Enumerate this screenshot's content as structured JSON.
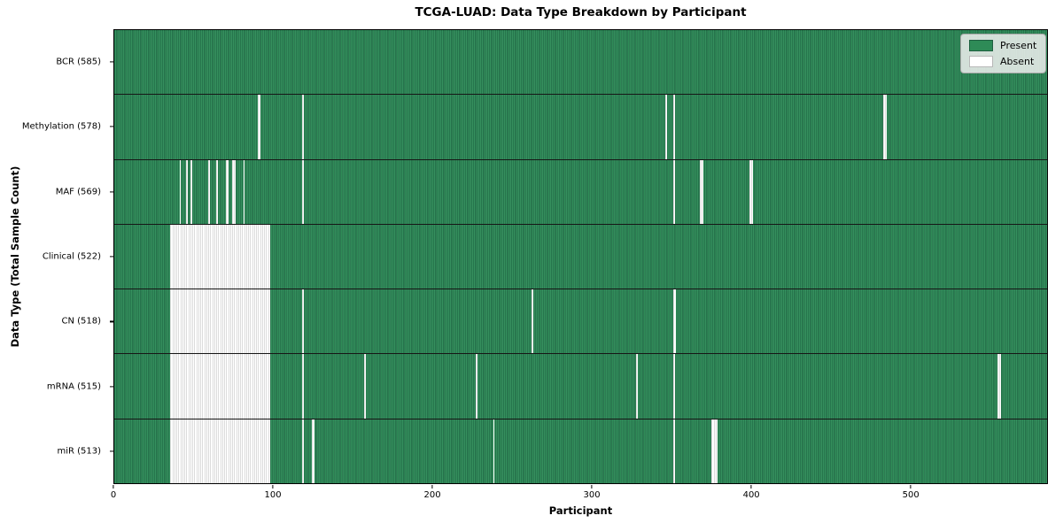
{
  "figure": {
    "title": "TCGA-LUAD: Data Type Breakdown by Participant",
    "xlabel": "Participant",
    "ylabel": "Data Type (Total Sample Count)"
  },
  "legend": {
    "present_label": "Present",
    "absent_label": "Absent"
  },
  "colors": {
    "present": "#2e8b57",
    "present_edge": "#1e5f40",
    "present_light": "#3c9465",
    "absent": "#ffffff",
    "absent_edge": "#b9b9b9",
    "plot_border": "#000000",
    "row_divider": "#161616",
    "legend_bg": "#ececec",
    "legend_border": "#a8a8a8"
  },
  "chart_data": {
    "type": "heatmap",
    "title": "TCGA-LUAD: Data Type Breakdown by Participant",
    "xlabel": "Participant",
    "ylabel": "Data Type (Total Sample Count)",
    "x_ticks": [
      0,
      100,
      200,
      300,
      400,
      500
    ],
    "x_max": 586,
    "total_participants": 585,
    "grid": false,
    "legend_position": "upper right",
    "legend": [
      {
        "label": "Present",
        "color": "#2e8b57"
      },
      {
        "label": "Absent",
        "color": "#ffffff"
      }
    ],
    "rows": [
      {
        "key": "bcr",
        "label": "BCR (585)",
        "data_type": "BCR",
        "sample_count": 585,
        "absent_blocks": [],
        "absent_singles": []
      },
      {
        "key": "methylation",
        "label": "Methylation (578)",
        "data_type": "Methylation",
        "sample_count": 578,
        "absent_blocks": [],
        "absent_singles": [
          90,
          91,
          118,
          346,
          351,
          483,
          484
        ]
      },
      {
        "key": "maf",
        "label": "MAF (569)",
        "data_type": "MAF",
        "sample_count": 569,
        "absent_blocks": [],
        "absent_singles": [
          41,
          45,
          48,
          59,
          64,
          70,
          71,
          74,
          75,
          81,
          118,
          351,
          368,
          369,
          399,
          400
        ]
      },
      {
        "key": "clinical",
        "label": "Clinical (522)",
        "data_type": "Clinical",
        "sample_count": 522,
        "absent_blocks": [
          [
            35,
            97
          ]
        ],
        "absent_singles": []
      },
      {
        "key": "cn",
        "label": "CN (518)",
        "data_type": "CN",
        "sample_count": 518,
        "absent_blocks": [
          [
            35,
            97
          ]
        ],
        "absent_singles": [
          118,
          262,
          351,
          352
        ]
      },
      {
        "key": "mrna",
        "label": "mRNA (515)",
        "data_type": "mRNA",
        "sample_count": 515,
        "absent_blocks": [
          [
            35,
            97
          ]
        ],
        "absent_singles": [
          118,
          157,
          227,
          328,
          351,
          555,
          556
        ]
      },
      {
        "key": "mir",
        "label": "miR (513)",
        "data_type": "miR",
        "sample_count": 513,
        "absent_blocks": [
          [
            35,
            97
          ]
        ],
        "absent_singles": [
          118,
          124,
          125,
          238,
          351,
          375,
          376,
          377,
          378
        ]
      }
    ]
  }
}
